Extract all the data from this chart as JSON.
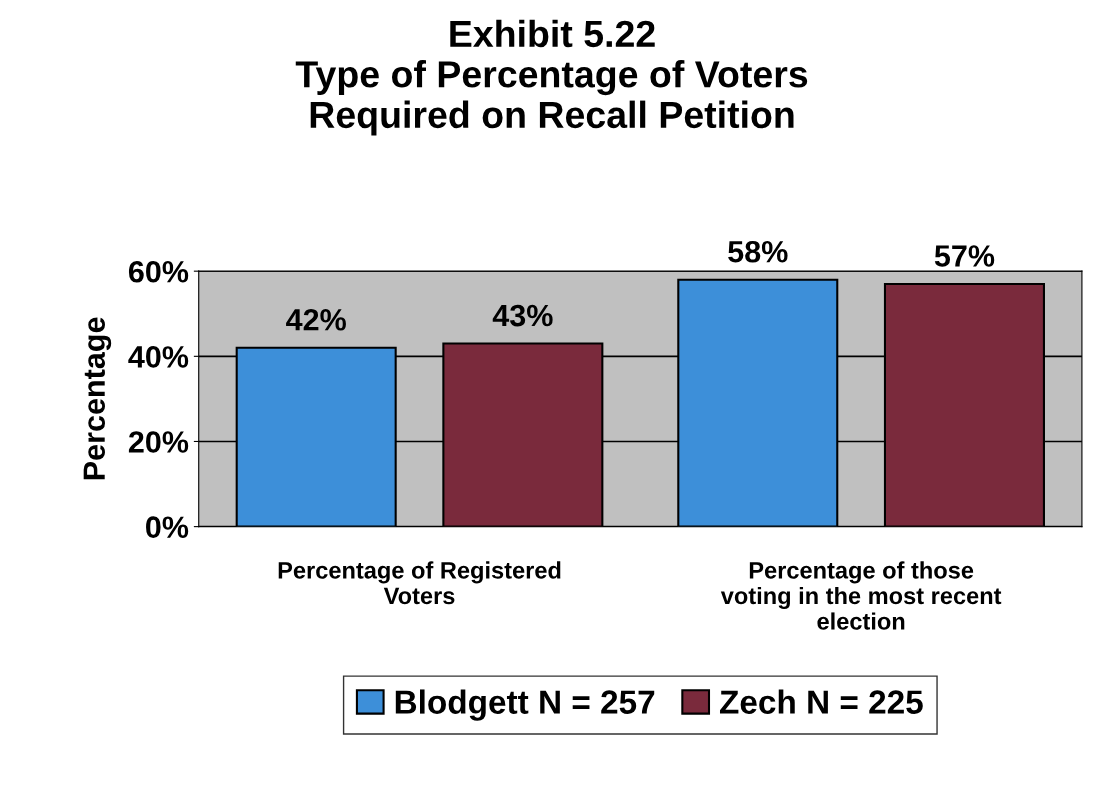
{
  "chart_data": {
    "type": "bar",
    "title": "Exhibit 5.22\nType of Percentage of Voters\nRequired on Recall Petition",
    "ylabel": "Percentage",
    "categories": [
      "Percentage of Registered\nVoters",
      "Percentage of those\nvoting in the most recent\nelection"
    ],
    "series": [
      {
        "name": "Blodgett N = 257",
        "color": "#3d8fd9",
        "values": [
          42,
          58
        ],
        "value_labels": [
          "42%",
          "58%"
        ]
      },
      {
        "name": "Zech N = 225",
        "color": "#7a2a3c",
        "values": [
          43,
          57
        ],
        "value_labels": [
          "43%",
          "57%"
        ]
      }
    ],
    "ylim": [
      0,
      60
    ],
    "yticks": [
      {
        "value": 0,
        "label": "0%"
      },
      {
        "value": 20,
        "label": "20%"
      },
      {
        "value": 40,
        "label": "40%"
      },
      {
        "value": 60,
        "label": "60%"
      }
    ],
    "grid": "y",
    "legend": "bottom"
  }
}
